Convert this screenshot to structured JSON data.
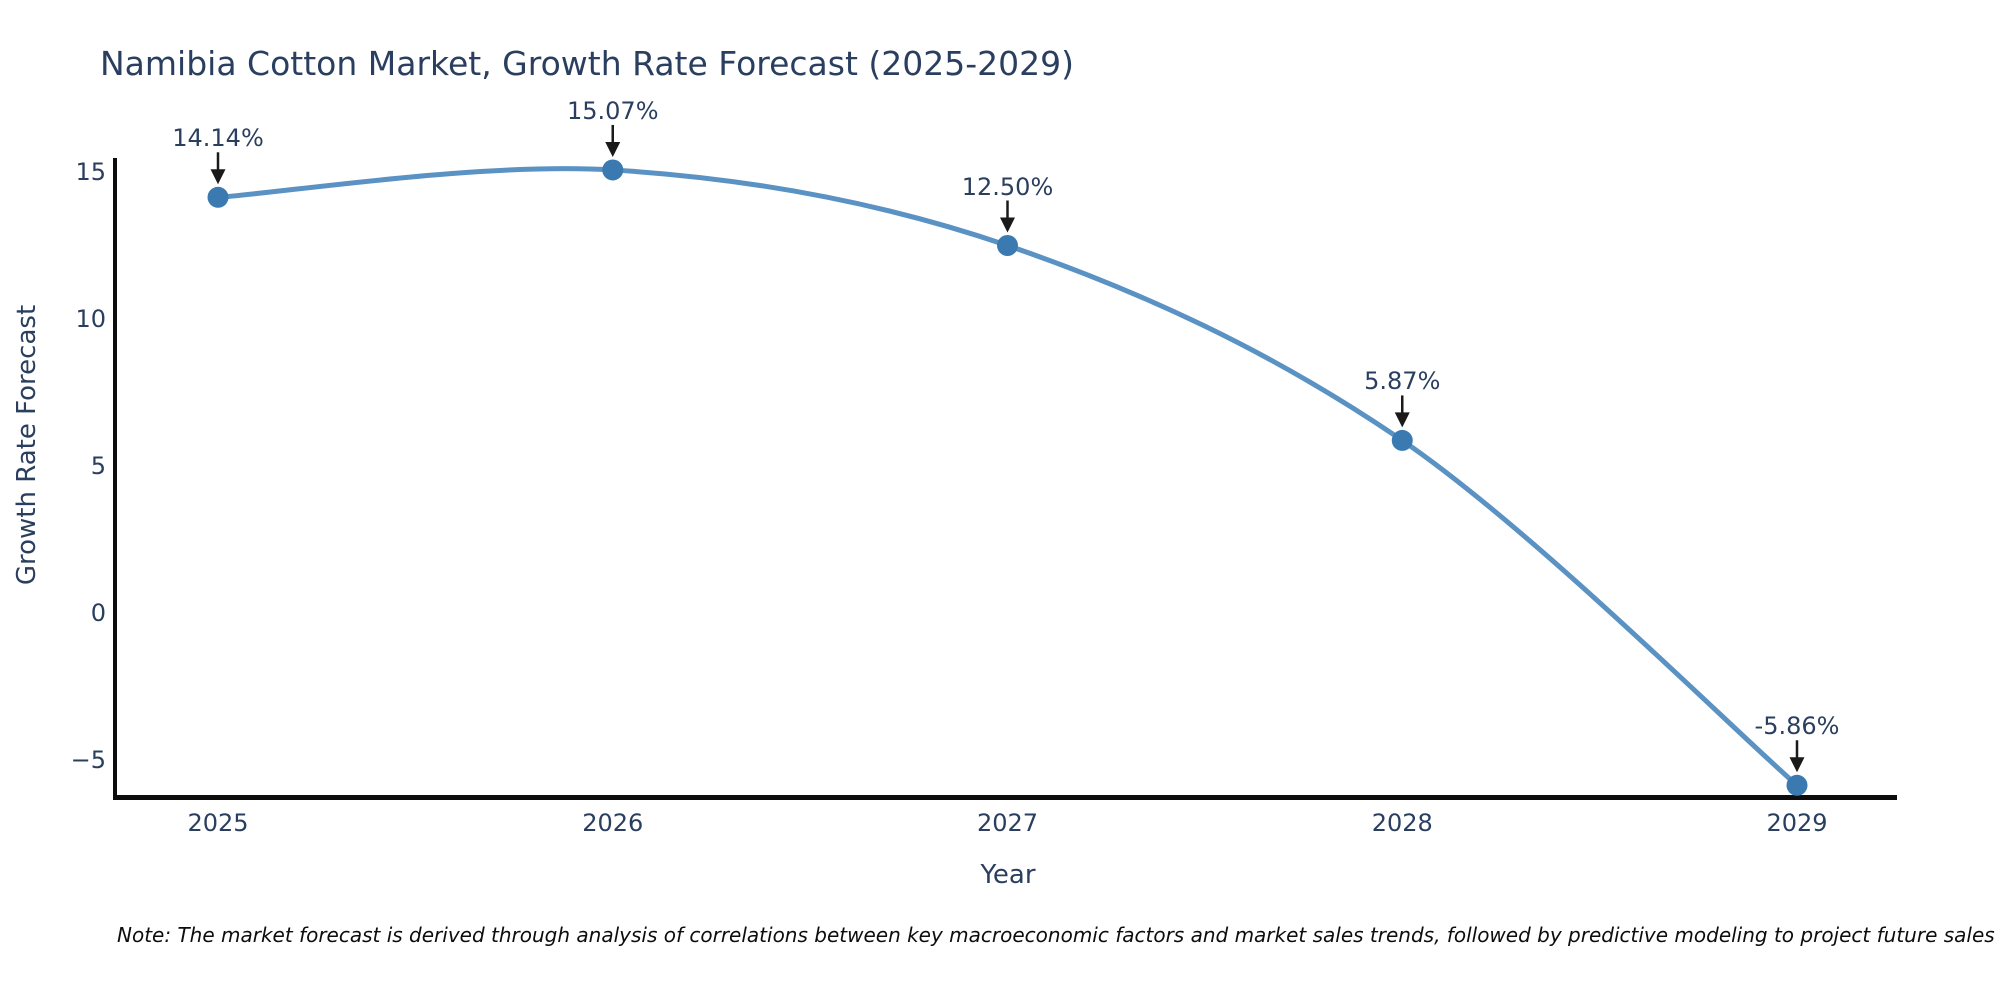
{
  "note": "Note: The market forecast is derived through analysis of correlations between key macroeconomic factors and market sales trends, followed by predictive modeling to project future sales",
  "chart_data": {
    "type": "line",
    "title": "Namibia Cotton Market, Growth Rate Forecast (2025-2029)",
    "xlabel": "Year",
    "ylabel": "Growth Rate Forecast",
    "categories": [
      "2025",
      "2026",
      "2027",
      "2028",
      "2029"
    ],
    "series": [
      {
        "name": "Growth Rate Forecast",
        "values": [
          14.14,
          15.07,
          12.5,
          5.87,
          -5.86
        ]
      }
    ],
    "point_labels": [
      "14.14%",
      "15.07%",
      "12.50%",
      "5.87%",
      "-5.86%"
    ],
    "y_ticks": [
      15,
      10,
      5,
      0,
      -5
    ],
    "ylim": [
      -6.4,
      16.9
    ],
    "grid": false,
    "curve": "spline",
    "legend_position": "none",
    "colors": {
      "line": "#5b92c4",
      "marker": "#3b7ab1",
      "axis_line": "#0d0d0d",
      "arrow": "#1a1a1a",
      "text": "#2a3f5f",
      "background": "#ffffff"
    }
  }
}
